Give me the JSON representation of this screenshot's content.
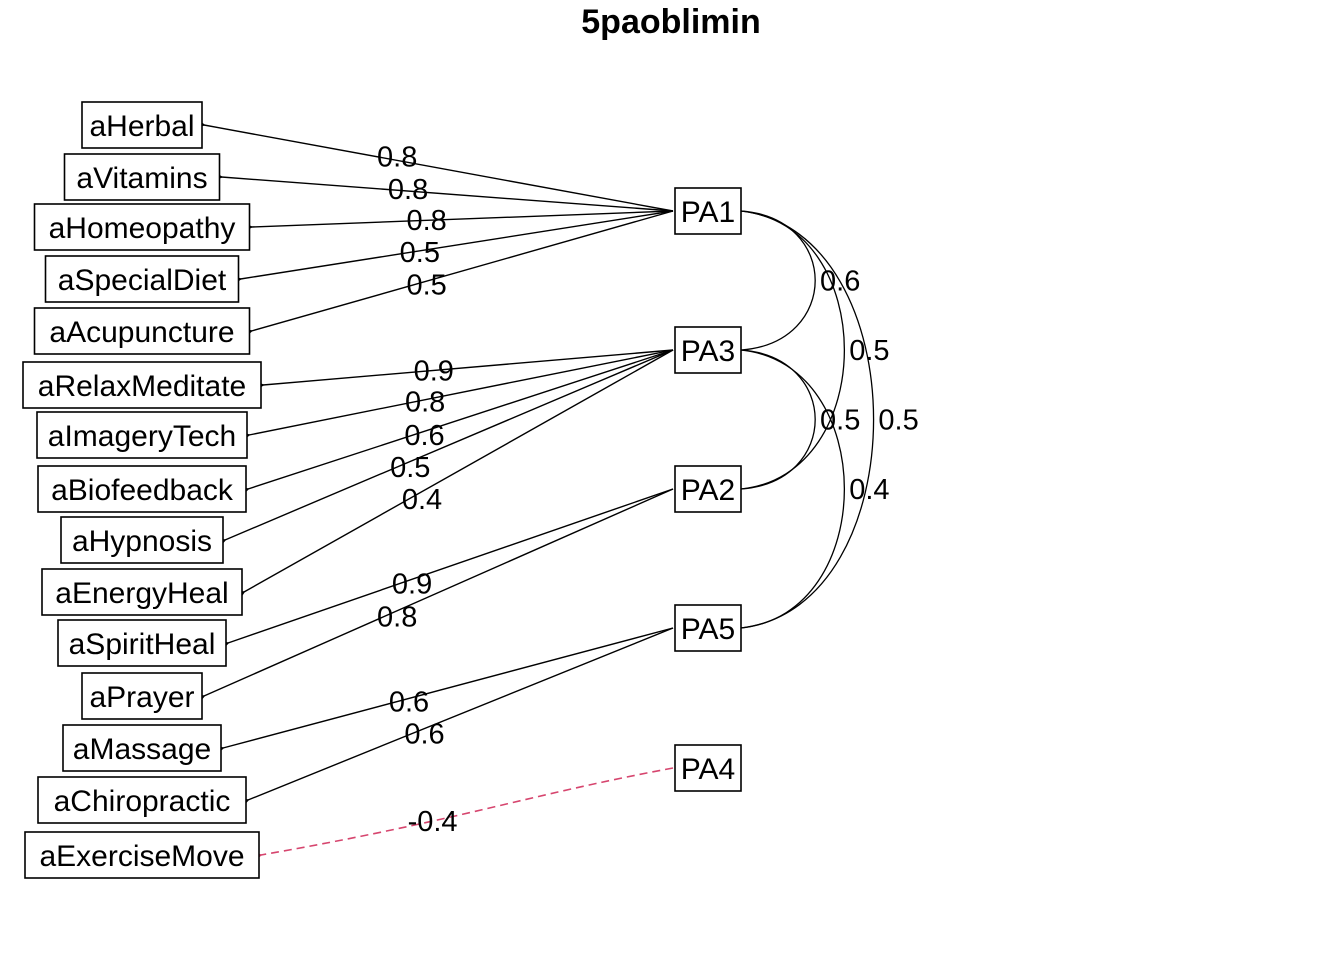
{
  "title": "5paoblimin",
  "colors": {
    "positive": "#000000",
    "negative": "#d6456e"
  },
  "observed": [
    {
      "id": "aHerbal",
      "label": "aHerbal"
    },
    {
      "id": "aVitamins",
      "label": "aVitamins"
    },
    {
      "id": "aHomeopathy",
      "label": "aHomeopathy"
    },
    {
      "id": "aSpecialDiet",
      "label": "aSpecialDiet"
    },
    {
      "id": "aAcupuncture",
      "label": "aAcupuncture"
    },
    {
      "id": "aRelaxMeditate",
      "label": "aRelaxMeditate"
    },
    {
      "id": "aImageryTech",
      "label": "aImageryTech"
    },
    {
      "id": "aBiofeedback",
      "label": "aBiofeedback"
    },
    {
      "id": "aHypnosis",
      "label": "aHypnosis"
    },
    {
      "id": "aEnergyHeal",
      "label": "aEnergyHeal"
    },
    {
      "id": "aSpiritHeal",
      "label": "aSpiritHeal"
    },
    {
      "id": "aPrayer",
      "label": "aPrayer"
    },
    {
      "id": "aMassage",
      "label": "aMassage"
    },
    {
      "id": "aChiropractic",
      "label": "aChiropractic"
    },
    {
      "id": "aExerciseMove",
      "label": "aExerciseMove"
    }
  ],
  "factors": [
    {
      "id": "PA1",
      "label": "PA1"
    },
    {
      "id": "PA3",
      "label": "PA3"
    },
    {
      "id": "PA2",
      "label": "PA2"
    },
    {
      "id": "PA5",
      "label": "PA5"
    },
    {
      "id": "PA4",
      "label": "PA4"
    }
  ],
  "loadings": [
    {
      "from": "PA1",
      "to": "aHerbal",
      "label": "0.8"
    },
    {
      "from": "PA1",
      "to": "aVitamins",
      "label": "0.8"
    },
    {
      "from": "PA1",
      "to": "aHomeopathy",
      "label": "0.8"
    },
    {
      "from": "PA1",
      "to": "aSpecialDiet",
      "label": "0.5"
    },
    {
      "from": "PA1",
      "to": "aAcupuncture",
      "label": "0.5"
    },
    {
      "from": "PA3",
      "to": "aRelaxMeditate",
      "label": "0.9"
    },
    {
      "from": "PA3",
      "to": "aImageryTech",
      "label": "0.8"
    },
    {
      "from": "PA3",
      "to": "aBiofeedback",
      "label": "0.6"
    },
    {
      "from": "PA3",
      "to": "aHypnosis",
      "label": "0.5"
    },
    {
      "from": "PA3",
      "to": "aEnergyHeal",
      "label": "0.4"
    },
    {
      "from": "PA2",
      "to": "aSpiritHeal",
      "label": "0.9"
    },
    {
      "from": "PA2",
      "to": "aPrayer",
      "label": "0.8"
    },
    {
      "from": "PA5",
      "to": "aMassage",
      "label": "0.6"
    },
    {
      "from": "PA5",
      "to": "aChiropractic",
      "label": "0.6"
    },
    {
      "from": "PA4",
      "to": "aExerciseMove",
      "label": "-0.4",
      "negative": true
    }
  ],
  "correlations": [
    {
      "a": "PA1",
      "b": "PA3",
      "label": "0.6"
    },
    {
      "a": "PA1",
      "b": "PA2",
      "label": "0.5"
    },
    {
      "a": "PA1",
      "b": "PA5",
      "label": "0.5"
    },
    {
      "a": "PA3",
      "b": "PA2",
      "label": "0.5"
    },
    {
      "a": "PA3",
      "b": "PA5",
      "label": "0.4"
    }
  ]
}
